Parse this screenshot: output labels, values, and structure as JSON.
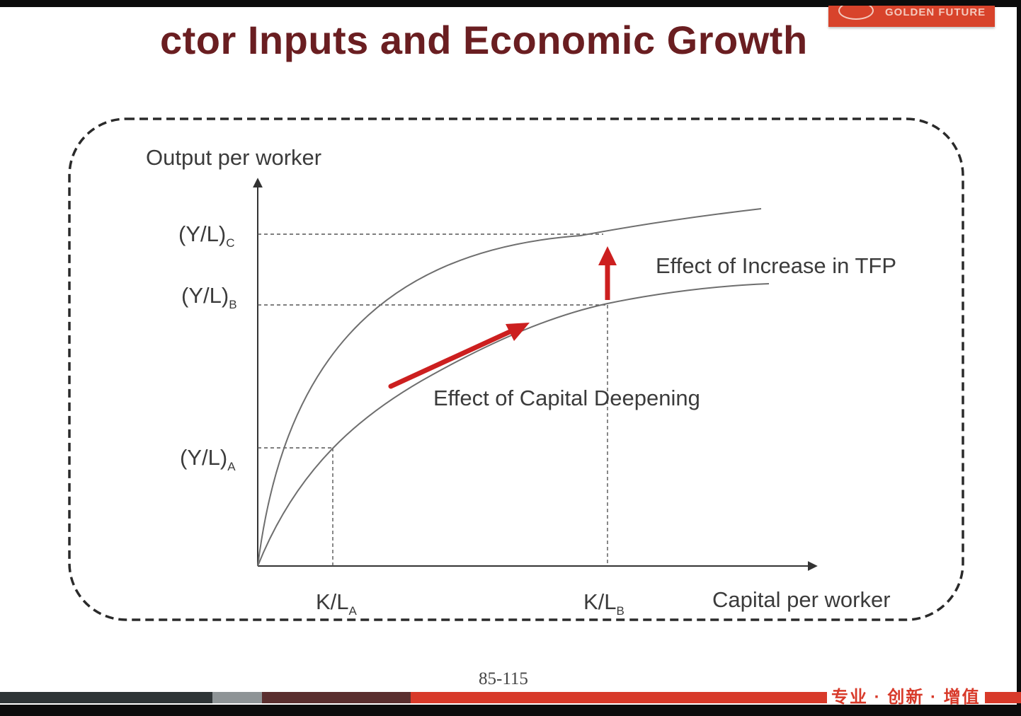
{
  "slide": {
    "title": "ctor Inputs and Economic Growth",
    "page_number": "85-115",
    "footer_slogan": "专业 · 创新 · 增值",
    "logo_text": "GOLDEN FUTURE"
  },
  "diagram": {
    "y_axis_label": "Output per worker",
    "x_axis_label": "Capital per worker",
    "y_ticks": [
      {
        "main": "(Y/L)",
        "sub": "C"
      },
      {
        "main": "(Y/L)",
        "sub": "B"
      },
      {
        "main": "(Y/L)",
        "sub": "A"
      }
    ],
    "x_ticks": [
      {
        "main": "K/L",
        "sub": "A"
      },
      {
        "main": "K/L",
        "sub": "B"
      }
    ],
    "annotations": {
      "tfp": "Effect of Increase in TFP",
      "capital_deepening": "Effect of Capital Deepening"
    }
  },
  "colors": {
    "title": "#6a1e21",
    "accent_red": "#cc1f1f",
    "curve": "#6e6e6e",
    "footer_red": "#d83a2a"
  }
}
